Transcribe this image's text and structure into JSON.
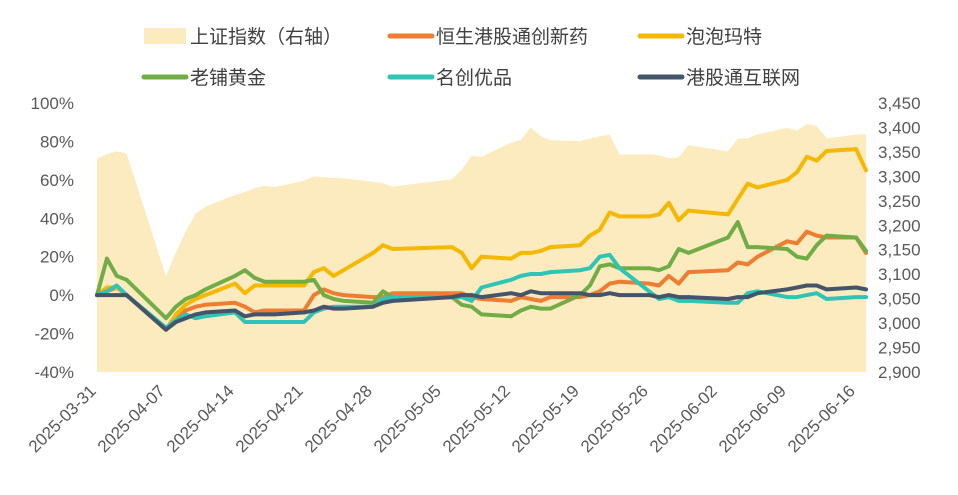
{
  "chart_data": {
    "type": "line",
    "x": [
      "2025-03-31",
      "2025-04-01",
      "2025-04-02",
      "2025-04-03",
      "2025-04-07",
      "2025-04-08",
      "2025-04-09",
      "2025-04-10",
      "2025-04-11",
      "2025-04-14",
      "2025-04-15",
      "2025-04-16",
      "2025-04-17",
      "2025-04-18",
      "2025-04-21",
      "2025-04-22",
      "2025-04-23",
      "2025-04-24",
      "2025-04-25",
      "2025-04-28",
      "2025-04-29",
      "2025-04-30",
      "2025-05-06",
      "2025-05-07",
      "2025-05-08",
      "2025-05-09",
      "2025-05-12",
      "2025-05-13",
      "2025-05-14",
      "2025-05-15",
      "2025-05-16",
      "2025-05-19",
      "2025-05-20",
      "2025-05-21",
      "2025-05-22",
      "2025-05-23",
      "2025-05-26",
      "2025-05-27",
      "2025-05-28",
      "2025-05-29",
      "2025-05-30",
      "2025-06-03",
      "2025-06-04",
      "2025-06-05",
      "2025-06-06",
      "2025-06-09",
      "2025-06-10",
      "2025-06-11",
      "2025-06-12",
      "2025-06-13",
      "2025-06-16",
      "2025-06-17"
    ],
    "x_ticks": [
      "2025-03-31",
      "2025-04-07",
      "2025-04-14",
      "2025-04-21",
      "2025-04-28",
      "2025-05-05",
      "2025-05-12",
      "2025-05-19",
      "2025-05-26",
      "2025-06-02",
      "2025-06-09",
      "2025-06-16"
    ],
    "y_left": {
      "ticks": [
        "-40%",
        "-20%",
        "0%",
        "20%",
        "40%",
        "60%",
        "80%",
        "100%"
      ],
      "range": [
        -40,
        100
      ]
    },
    "y_right": {
      "ticks": [
        "2,900",
        "2,950",
        "3,000",
        "3,050",
        "3,100",
        "3,150",
        "3,200",
        "3,250",
        "3,300",
        "3,350",
        "3,400",
        "3,450"
      ],
      "range": [
        2900,
        3450
      ]
    },
    "area": {
      "name": "上证指数（右轴）",
      "color": "#FDEBC0",
      "values": [
        3336,
        3346,
        3351,
        3347,
        3096,
        3145,
        3187,
        3224,
        3238,
        3262,
        3268,
        3276,
        3281,
        3278,
        3291,
        3300,
        3298,
        3297,
        3296,
        3289,
        3286,
        3279,
        3294,
        3314,
        3342,
        3340,
        3369,
        3375,
        3400,
        3382,
        3374,
        3372,
        3377,
        3382,
        3385,
        3345,
        3345,
        3343,
        3337,
        3339,
        3364,
        3351,
        3377,
        3378,
        3386,
        3399,
        3394,
        3407,
        3403,
        3378,
        3385,
        3386
      ]
    },
    "series": [
      {
        "name": "恒生港股通创新药",
        "color": "#ED7D31",
        "values": [
          0,
          2,
          4,
          0,
          -18,
          -12,
          -8,
          -6,
          -5,
          -4,
          -6,
          -9,
          -8,
          -8,
          -8,
          0,
          3,
          1,
          0,
          -1,
          -1,
          1,
          1,
          1,
          -1,
          -2,
          -3,
          -1,
          -2,
          -3,
          -1,
          -1,
          0,
          2,
          6,
          7,
          6,
          5,
          10,
          6,
          12,
          13,
          17,
          16,
          20,
          28,
          27,
          33,
          31,
          30,
          30,
          22
        ]
      },
      {
        "name": "泡泡玛特",
        "color": "#F5B800",
        "values": [
          0,
          4,
          4,
          0,
          -18,
          -10,
          -5,
          -2,
          0,
          6,
          1,
          5,
          5,
          5,
          5,
          12,
          14,
          10,
          13,
          22,
          26,
          24,
          25,
          22,
          14,
          20,
          19,
          22,
          22,
          23,
          25,
          26,
          31,
          34,
          43,
          41,
          41,
          42,
          48,
          39,
          44,
          42,
          50,
          58,
          56,
          60,
          64,
          72,
          70,
          75,
          76,
          65
        ]
      },
      {
        "name": "老铺黄金",
        "color": "#70AD47",
        "values": [
          0,
          19,
          10,
          8,
          -12,
          -6,
          -2,
          0,
          3,
          10,
          13,
          9,
          7,
          7,
          7,
          8,
          0,
          -2,
          -3,
          -4,
          2,
          -1,
          -1,
          -5,
          -6,
          -10,
          -11,
          -8,
          -6,
          -7,
          -7,
          0,
          5,
          15,
          16,
          14,
          14,
          13,
          15,
          24,
          22,
          30,
          38,
          25,
          25,
          24,
          20,
          19,
          26,
          31,
          30,
          23
        ]
      },
      {
        "name": "名创优品",
        "color": "#2EC4B6",
        "values": [
          0,
          2,
          5,
          0,
          -17,
          -13,
          -10,
          -12,
          -11,
          -9,
          -14,
          -14,
          -14,
          -14,
          -14,
          -9,
          -7,
          -6,
          -6,
          -6,
          -2,
          -1,
          -1,
          -1,
          -3,
          4,
          8,
          10,
          11,
          11,
          12,
          13,
          14,
          20,
          21,
          14,
          2,
          -2,
          -1,
          -3,
          -3,
          -4,
          -4,
          1,
          2,
          -1,
          -1,
          0,
          1,
          -2,
          -1,
          -1
        ]
      },
      {
        "name": "港股通互联网",
        "color": "#44546A",
        "values": [
          0,
          0,
          0,
          0,
          -18,
          -14,
          -12,
          -10,
          -9,
          -8,
          -11,
          -10,
          -10,
          -10,
          -9,
          -8,
          -6,
          -7,
          -7,
          -6,
          -4,
          -3,
          -1,
          0,
          0,
          -1,
          1,
          0,
          2,
          1,
          1,
          1,
          0,
          0,
          1,
          0,
          0,
          -1,
          0,
          -1,
          -1,
          -2,
          -1,
          -1,
          1,
          3,
          4,
          5,
          5,
          3,
          4,
          3
        ]
      }
    ],
    "legend": [
      {
        "label": "上证指数（右轴）",
        "kind": "area",
        "color": "#FDEBC0"
      },
      {
        "label": "恒生港股通创新药",
        "kind": "line",
        "color": "#ED7D31"
      },
      {
        "label": "泡泡玛特",
        "kind": "line",
        "color": "#F5B800"
      },
      {
        "label": "老铺黄金",
        "kind": "line",
        "color": "#70AD47"
      },
      {
        "label": "名创优品",
        "kind": "line",
        "color": "#2EC4B6"
      },
      {
        "label": "港股通互联网",
        "kind": "line",
        "color": "#44546A"
      }
    ],
    "legend_position": "top",
    "grid": false
  }
}
